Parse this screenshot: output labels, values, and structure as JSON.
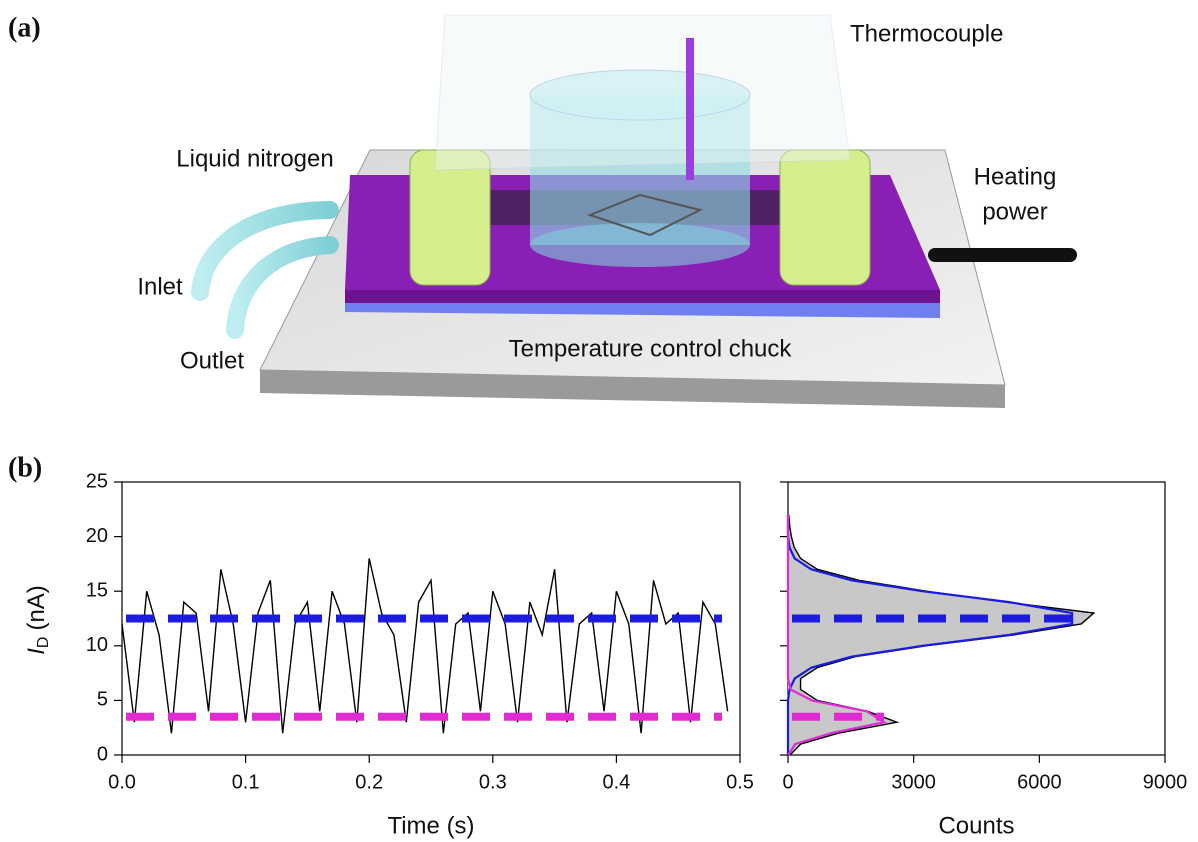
{
  "panel_a": {
    "label": "(a)",
    "thermocouple": "Thermocouple",
    "liquid_nitrogen": "Liquid nitrogen",
    "heating_power": [
      "Heating",
      "power"
    ],
    "inlet": "Inlet",
    "outlet": "Outlet",
    "chuck": "Temperature control chuck"
  },
  "panel_b": {
    "label": "(b)"
  },
  "chart_data": [
    {
      "type": "line",
      "orientation": "vertical",
      "xlabel": "Time (s)",
      "ylabel": {
        "symbol": "I",
        "subscript": "D",
        "unit": "(nA)"
      },
      "xlim": [
        0,
        0.5
      ],
      "xticks": [
        {
          "value": 0,
          "label": "0.0"
        },
        0.1,
        0.2,
        0.3,
        0.4,
        0.5
      ],
      "ylim": [
        0,
        25
      ],
      "yticks": [
        0,
        5,
        10,
        15,
        20,
        25
      ],
      "ytick_labels": true,
      "x": [
        0,
        0.01,
        0.02,
        0.03,
        0.04,
        0.05,
        0.06,
        0.07,
        0.08,
        0.09,
        0.1,
        0.11,
        0.12,
        0.13,
        0.14,
        0.15,
        0.16,
        0.17,
        0.18,
        0.19,
        0.2,
        0.21,
        0.22,
        0.23,
        0.24,
        0.25,
        0.26,
        0.27,
        0.28,
        0.29,
        0.3,
        0.31,
        0.32,
        0.33,
        0.34,
        0.35,
        0.36,
        0.37,
        0.38,
        0.39,
        0.4,
        0.41,
        0.42,
        0.43,
        0.44,
        0.45,
        0.46,
        0.47,
        0.48,
        0.49
      ],
      "series": [
        {
          "color": "#000000",
          "values": [
            12,
            3,
            15,
            11,
            2,
            14,
            13,
            4,
            17,
            12,
            3,
            13,
            16,
            2,
            12,
            14,
            4,
            15,
            12,
            3,
            18,
            13,
            11,
            3,
            14,
            16,
            2,
            12,
            13,
            4,
            15,
            12,
            3,
            14,
            11,
            17,
            3,
            12,
            13,
            4,
            15,
            12,
            2,
            16,
            12,
            13,
            3,
            14,
            12,
            4
          ]
        }
      ],
      "levels": [
        {
          "value": 12.5,
          "color": "#1c1ce0"
        },
        {
          "value": 3.5,
          "color": "#e02ad4"
        }
      ]
    },
    {
      "type": "line",
      "orientation": "horizontal",
      "xlabel": "Counts",
      "xlim": [
        0,
        9000
      ],
      "xticks": [
        0,
        3000,
        6000,
        9000
      ],
      "ylim": [
        0,
        25
      ],
      "yticks": [
        0,
        5,
        10,
        15,
        20,
        25
      ],
      "ytick_labels": false,
      "y": [
        0,
        1,
        2,
        3,
        4,
        5,
        6,
        7,
        8,
        9,
        10,
        11,
        12,
        13,
        14,
        15,
        16,
        17,
        18,
        19,
        20,
        21,
        22
      ],
      "series": [
        {
          "color": "#000000",
          "fill": "#c8c8c8",
          "values": [
            50,
            300,
            1200,
            2600,
            1900,
            700,
            300,
            300,
            700,
            1600,
            3300,
            5400,
            7000,
            7300,
            5200,
            3300,
            1700,
            700,
            300,
            150,
            80,
            40,
            20
          ]
        },
        {
          "color": "#1c1ce0",
          "values": [
            0,
            0,
            0,
            0,
            0,
            0,
            36,
            160,
            557,
            1514,
            3206,
            5285,
            6783,
            6783,
            5285,
            3206,
            1514,
            557,
            160,
            36,
            0,
            0,
            0
          ]
        },
        {
          "color": "#e02ad4",
          "values": [
            11,
            170,
            1031,
            2294,
            1879,
            566,
            63,
            0,
            0,
            0,
            0,
            0,
            0,
            0,
            0,
            0,
            0,
            0,
            0,
            0,
            0,
            0,
            0
          ]
        }
      ],
      "levels": [
        {
          "value": 12.5,
          "color": "#1c1ce0"
        },
        {
          "value": 3.5,
          "color": "#e02ad4"
        }
      ]
    }
  ]
}
